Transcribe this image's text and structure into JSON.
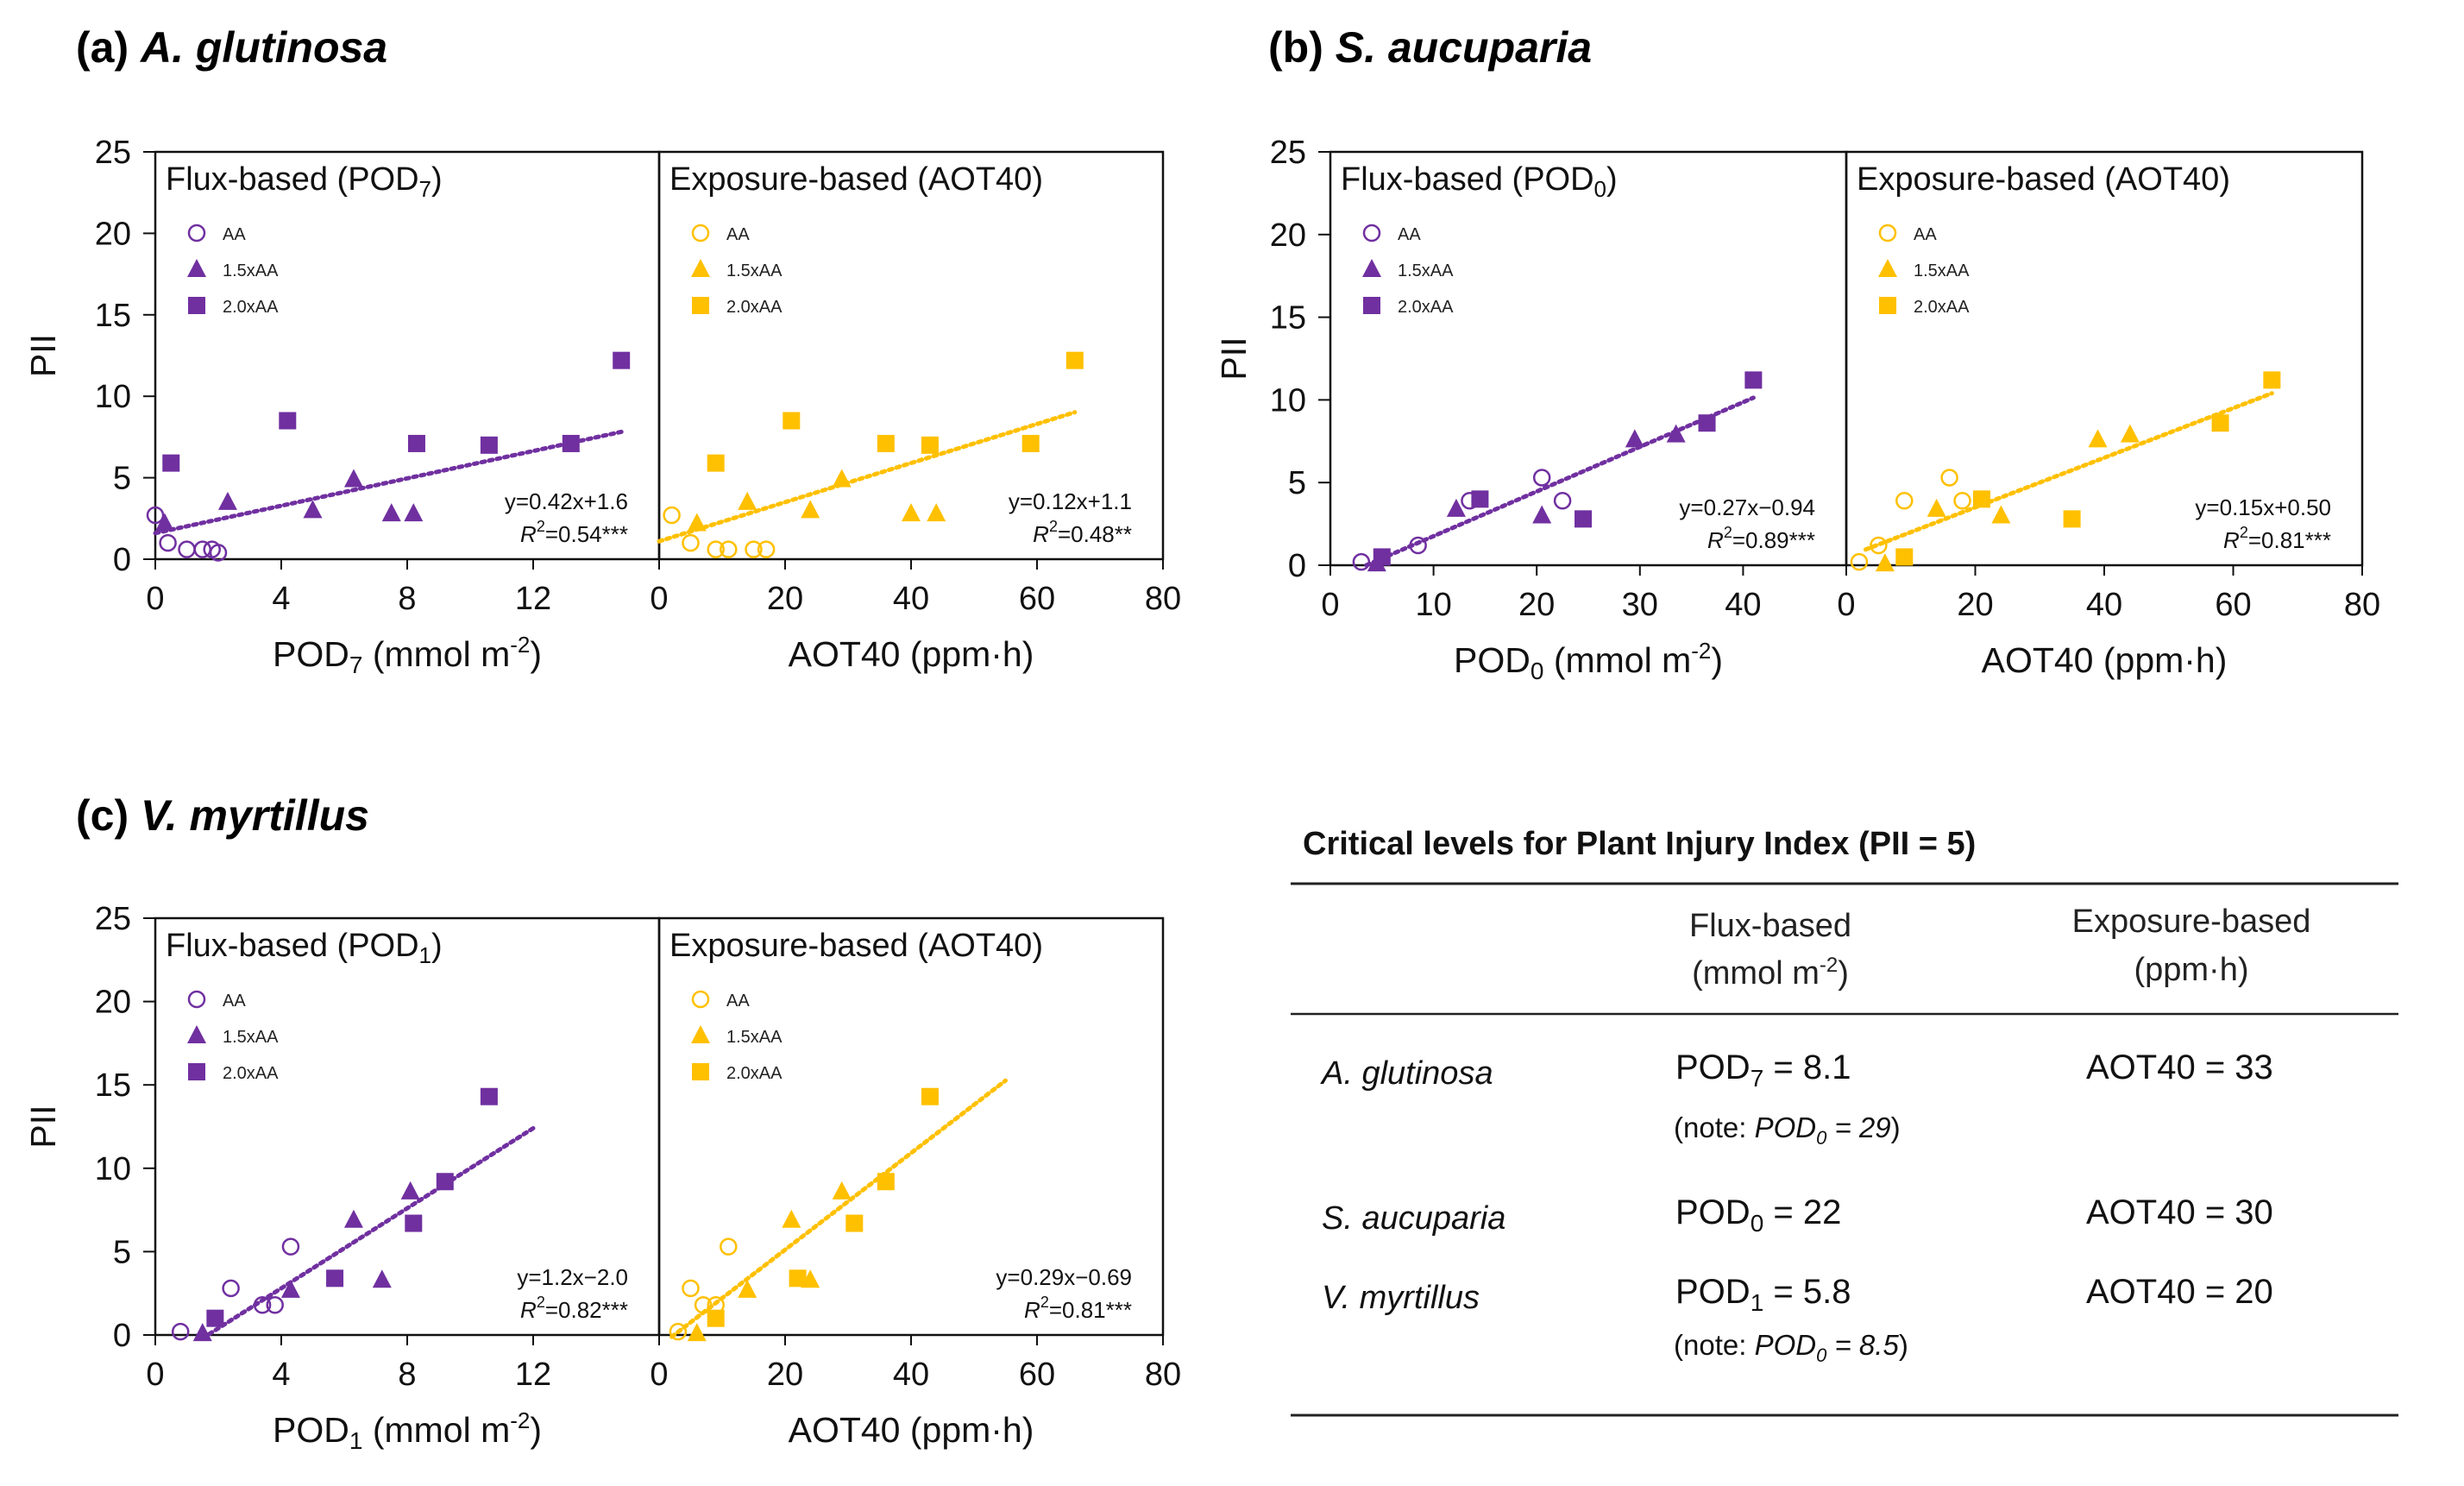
{
  "colors": {
    "flux": "#7030A0",
    "exposure": "#FFC000",
    "axis": "#111111"
  },
  "chart_data": [
    {
      "type": "scatter",
      "title": "(a) A. glutinosa",
      "title_prefix": "(a) ",
      "title_species": "A. glutinosa",
      "ylabel": "PII",
      "ylim": [
        0,
        25
      ],
      "yticks": [
        "0",
        "5",
        "10",
        "15",
        "20",
        "25"
      ],
      "panels": [
        {
          "kind": "flux",
          "label_main": "Flux-based (POD",
          "label_sub": "7",
          "label_end": ")",
          "xlim": [
            0,
            16
          ],
          "xticks": [
            "0",
            "4",
            "8",
            "12"
          ],
          "tick_values": [
            0,
            4,
            8,
            12
          ],
          "xlabel_main": "POD",
          "xlabel_sub": "7",
          "xlabel_rest": " (mmol m",
          "xlabel_sup": "-2",
          "xlabel_end": ")",
          "legend": [
            "AA",
            "1.5xAA",
            "2.0xAA"
          ],
          "series": [
            {
              "name": "AA",
              "marker": "circle",
              "points": [
                [
                  0,
                  2.7
                ],
                [
                  0.4,
                  1.0
                ],
                [
                  1.0,
                  0.6
                ],
                [
                  1.5,
                  0.6
                ],
                [
                  1.8,
                  0.6
                ],
                [
                  2.0,
                  0.4
                ]
              ]
            },
            {
              "name": "1.5xAA",
              "marker": "triangle",
              "points": [
                [
                  0.3,
                  2.2
                ],
                [
                  2.3,
                  3.5
                ],
                [
                  5.0,
                  3.0
                ],
                [
                  6.3,
                  4.9
                ],
                [
                  7.5,
                  2.8
                ],
                [
                  8.2,
                  2.8
                ]
              ]
            },
            {
              "name": "2.0xAA",
              "marker": "square",
              "points": [
                [
                  0.5,
                  5.9
                ],
                [
                  4.2,
                  8.5
                ],
                [
                  8.3,
                  7.1
                ],
                [
                  10.6,
                  7.0
                ],
                [
                  13.2,
                  7.1
                ],
                [
                  14.8,
                  12.2
                ]
              ]
            }
          ],
          "fit": {
            "slope": 0.42,
            "intercept": 1.6,
            "x_range": [
              0,
              14.8
            ]
          },
          "equation": "y=0.42x+1.6",
          "r2_value": "=0.54***"
        },
        {
          "kind": "exposure",
          "label_main": "Exposure-based (AOT40)",
          "xlim": [
            0,
            80
          ],
          "xticks": [
            "0",
            "20",
            "40",
            "60",
            "80"
          ],
          "tick_values": [
            0,
            20,
            40,
            60,
            80
          ],
          "xlabel_main": "AOT40 (ppm·h)",
          "legend": [
            "AA",
            "1.5xAA",
            "2.0xAA"
          ],
          "series": [
            {
              "name": "AA",
              "marker": "circle",
              "points": [
                [
                  2,
                  2.7
                ],
                [
                  5,
                  1.0
                ],
                [
                  9,
                  0.6
                ],
                [
                  11,
                  0.6
                ],
                [
                  15,
                  0.6
                ],
                [
                  17,
                  0.6
                ]
              ]
            },
            {
              "name": "1.5xAA",
              "marker": "triangle",
              "points": [
                [
                  6,
                  2.2
                ],
                [
                  14,
                  3.5
                ],
                [
                  24,
                  3.0
                ],
                [
                  29,
                  4.9
                ],
                [
                  40,
                  2.8
                ],
                [
                  44,
                  2.8
                ]
              ]
            },
            {
              "name": "2.0xAA",
              "marker": "square",
              "points": [
                [
                  9,
                  5.9
                ],
                [
                  21,
                  8.5
                ],
                [
                  36,
                  7.1
                ],
                [
                  43,
                  7.0
                ],
                [
                  59,
                  7.1
                ],
                [
                  66,
                  12.2
                ]
              ]
            }
          ],
          "fit": {
            "slope": 0.12,
            "intercept": 1.1,
            "x_range": [
              0,
              66
            ]
          },
          "equation": "y=0.12x+1.1",
          "r2_value": "=0.48**"
        }
      ]
    },
    {
      "type": "scatter",
      "title": "(b) S. aucuparia",
      "title_prefix": "(b) ",
      "title_species": "S. aucuparia",
      "ylabel": "PII",
      "ylim": [
        0,
        25
      ],
      "yticks": [
        "0",
        "5",
        "10",
        "15",
        "20",
        "25"
      ],
      "panels": [
        {
          "kind": "flux",
          "label_main": "Flux-based (POD",
          "label_sub": "0",
          "label_end": ")",
          "xlim": [
            0,
            50
          ],
          "xticks": [
            "0",
            "10",
            "20",
            "30",
            "40"
          ],
          "tick_values": [
            0,
            10,
            20,
            30,
            40
          ],
          "xlabel_main": "POD",
          "xlabel_sub": "0",
          "xlabel_rest": " (mmol m",
          "xlabel_sup": "-2",
          "xlabel_end": ")",
          "legend": [
            "AA",
            "1.5xAA",
            "2.0xAA"
          ],
          "series": [
            {
              "name": "AA",
              "marker": "circle",
              "points": [
                [
                  3.0,
                  0.2
                ],
                [
                  8.5,
                  1.2
                ],
                [
                  13.5,
                  3.9
                ],
                [
                  20.5,
                  5.3
                ],
                [
                  22.5,
                  3.9
                ]
              ]
            },
            {
              "name": "1.5xAA",
              "marker": "triangle",
              "points": [
                [
                  4.5,
                  0.1
                ],
                [
                  12.2,
                  3.4
                ],
                [
                  20.5,
                  3.0
                ],
                [
                  29.5,
                  7.6
                ],
                [
                  33.5,
                  7.9
                ]
              ]
            },
            {
              "name": "2.0xAA",
              "marker": "square",
              "points": [
                [
                  5.0,
                  0.5
                ],
                [
                  14.5,
                  4.0
                ],
                [
                  24.5,
                  2.8
                ],
                [
                  36.5,
                  8.6
                ],
                [
                  41.0,
                  11.2
                ]
              ]
            }
          ],
          "fit": {
            "slope": 0.27,
            "intercept": -0.94,
            "x_range": [
              3.5,
              41
            ]
          },
          "equation": "y=0.27x−0.94",
          "r2_value": "=0.89***"
        },
        {
          "kind": "exposure",
          "label_main": "Exposure-based (AOT40)",
          "xlim": [
            0,
            80
          ],
          "xticks": [
            "0",
            "20",
            "40",
            "60",
            "80"
          ],
          "tick_values": [
            0,
            20,
            40,
            60,
            80
          ],
          "xlabel_main": "AOT40 (ppm·h)",
          "legend": [
            "AA",
            "1.5xAA",
            "2.0xAA"
          ],
          "series": [
            {
              "name": "AA",
              "marker": "circle",
              "points": [
                [
                  2,
                  0.2
                ],
                [
                  5,
                  1.2
                ],
                [
                  9,
                  3.9
                ],
                [
                  16,
                  5.3
                ],
                [
                  18,
                  3.9
                ]
              ]
            },
            {
              "name": "1.5xAA",
              "marker": "triangle",
              "points": [
                [
                  6,
                  0.1
                ],
                [
                  14,
                  3.4
                ],
                [
                  24,
                  3.0
                ],
                [
                  39,
                  7.6
                ],
                [
                  44,
                  7.9
                ]
              ]
            },
            {
              "name": "2.0xAA",
              "marker": "square",
              "points": [
                [
                  9,
                  0.5
                ],
                [
                  21,
                  4.0
                ],
                [
                  35,
                  2.8
                ],
                [
                  58,
                  8.6
                ],
                [
                  66,
                  11.2
                ]
              ]
            }
          ],
          "fit": {
            "slope": 0.15,
            "intercept": 0.5,
            "x_range": [
              3,
              66
            ]
          },
          "equation": "y=0.15x+0.50",
          "r2_value": "=0.81***"
        }
      ]
    },
    {
      "type": "scatter",
      "title": "(c) V. myrtillus",
      "title_prefix": "(c) ",
      "title_species": "V. myrtillus",
      "ylabel": "PII",
      "ylim": [
        0,
        25
      ],
      "yticks": [
        "0",
        "5",
        "10",
        "15",
        "20",
        "25"
      ],
      "panels": [
        {
          "kind": "flux",
          "label_main": "Flux-based (POD",
          "label_sub": "1",
          "label_end": ")",
          "xlim": [
            0,
            16
          ],
          "xticks": [
            "0",
            "4",
            "8",
            "12"
          ],
          "tick_values": [
            0,
            4,
            8,
            12
          ],
          "xlabel_main": "POD",
          "xlabel_sub": "1",
          "xlabel_rest": " (mmol m",
          "xlabel_sup": "-2",
          "xlabel_end": ")",
          "legend": [
            "AA",
            "1.5xAA",
            "2.0xAA"
          ],
          "series": [
            {
              "name": "AA",
              "marker": "circle",
              "points": [
                [
                  0.8,
                  0.2
                ],
                [
                  2.4,
                  2.8
                ],
                [
                  3.4,
                  1.8
                ],
                [
                  3.8,
                  1.8
                ],
                [
                  4.3,
                  5.3
                ]
              ]
            },
            {
              "name": "1.5xAA",
              "marker": "triangle",
              "points": [
                [
                  1.5,
                  0.1
                ],
                [
                  4.3,
                  2.7
                ],
                [
                  6.3,
                  6.9
                ],
                [
                  7.2,
                  3.3
                ],
                [
                  8.1,
                  8.6
                ]
              ]
            },
            {
              "name": "2.0xAA",
              "marker": "square",
              "points": [
                [
                  1.9,
                  1.0
                ],
                [
                  5.7,
                  3.4
                ],
                [
                  8.2,
                  6.7
                ],
                [
                  9.2,
                  9.2
                ],
                [
                  10.6,
                  14.3
                ]
              ]
            }
          ],
          "fit": {
            "slope": 1.2,
            "intercept": -2.0,
            "x_range": [
              1.5,
              12
            ]
          },
          "equation": "y=1.2x−2.0",
          "r2_value": "=0.82***"
        },
        {
          "kind": "exposure",
          "label_main": "Exposure-based (AOT40)",
          "xlim": [
            0,
            80
          ],
          "xticks": [
            "0",
            "20",
            "40",
            "60",
            "80"
          ],
          "tick_values": [
            0,
            20,
            40,
            60,
            80
          ],
          "xlabel_main": "AOT40 (ppm·h)",
          "legend": [
            "AA",
            "1.5xAA",
            "2.0xAA"
          ],
          "series": [
            {
              "name": "AA",
              "marker": "circle",
              "points": [
                [
                  5,
                  2.8
                ],
                [
                  7,
                  1.8
                ],
                [
                  9,
                  1.8
                ],
                [
                  11,
                  5.3
                ],
                [
                  3,
                  0.2
                ]
              ]
            },
            {
              "name": "1.5xAA",
              "marker": "triangle",
              "points": [
                [
                  6,
                  0.1
                ],
                [
                  14,
                  2.7
                ],
                [
                  21,
                  6.9
                ],
                [
                  24,
                  3.3
                ],
                [
                  29,
                  8.6
                ]
              ]
            },
            {
              "name": "2.0xAA",
              "marker": "square",
              "points": [
                [
                  9,
                  1.0
                ],
                [
                  22,
                  3.4
                ],
                [
                  31,
                  6.7
                ],
                [
                  36,
                  9.2
                ],
                [
                  43,
                  14.3
                ]
              ]
            }
          ],
          "fit": {
            "slope": 0.29,
            "intercept": -0.69,
            "x_range": [
              2,
              55
            ]
          },
          "equation": "y=0.29x−0.69",
          "r2_value": "=0.81***"
        }
      ]
    }
  ],
  "critical_table": {
    "title": "Critical levels for Plant Injury Index (PII = 5)",
    "flux_head_1": "Flux-based",
    "flux_head_2": "(mmol m",
    "flux_head_sup": "-2",
    "flux_head_end": ")",
    "exp_head_1": "Exposure-based",
    "exp_head_2": "(ppm·h)",
    "rows": [
      {
        "species": "A. glutinosa",
        "flux_main": "POD",
        "flux_sub": "7",
        "flux_val": " = 8.1",
        "exposure": "AOT40 = 33",
        "note_pre": "(note: ",
        "note_var": "POD",
        "note_sub": "0",
        "note_val": " = 29",
        "note_end": ")"
      },
      {
        "species": "S. aucuparia",
        "flux_main": "POD",
        "flux_sub": "0",
        "flux_val": " = 22",
        "exposure": "AOT40 = 30"
      },
      {
        "species": "V. myrtillus",
        "flux_main": "POD",
        "flux_sub": "1",
        "flux_val": " = 5.8",
        "exposure": "AOT40 = 20",
        "note_pre": "(note: ",
        "note_var": "POD",
        "note_sub": "0",
        "note_val": " = 8.5",
        "note_end": ")"
      }
    ]
  }
}
